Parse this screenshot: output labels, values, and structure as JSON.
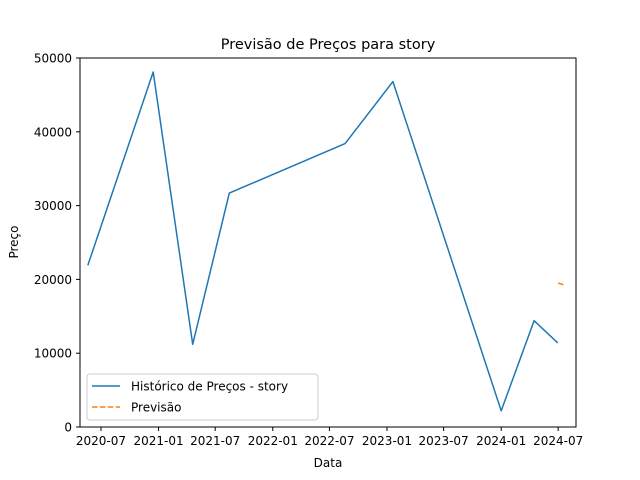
{
  "chart_data": {
    "type": "line",
    "title": "Previsão de Preços para story",
    "xlabel": "Data",
    "ylabel": "Preço",
    "x_ticks": [
      "2020-07",
      "2021-01",
      "2021-07",
      "2022-01",
      "2022-07",
      "2023-01",
      "2023-07",
      "2024-01",
      "2024-07"
    ],
    "y_ticks": [
      "0",
      "10000",
      "20000",
      "30000",
      "40000",
      "50000"
    ],
    "ylim": [
      0,
      50000
    ],
    "xlim": [
      "2020-04-25",
      "2024-08-27"
    ],
    "grid": false,
    "legend_position": "lower-left",
    "series": [
      {
        "name": "Histórico de Preços - story",
        "color": "#1f77b4",
        "style": "solid",
        "points": [
          {
            "x": "2020-05-20",
            "y": 21900
          },
          {
            "x": "2020-12-15",
            "y": 48100
          },
          {
            "x": "2021-04-20",
            "y": 11200
          },
          {
            "x": "2021-08-15",
            "y": 31700
          },
          {
            "x": "2022-08-20",
            "y": 38400
          },
          {
            "x": "2023-01-20",
            "y": 46800
          },
          {
            "x": "2024-01-01",
            "y": 2200
          },
          {
            "x": "2024-04-15",
            "y": 14400
          },
          {
            "x": "2024-06-30",
            "y": 11400
          }
        ]
      },
      {
        "name": "Previsão",
        "color": "#ff7f0e",
        "style": "dashed",
        "points": [
          {
            "x": "2024-07-01",
            "y": 19500
          },
          {
            "x": "2024-07-25",
            "y": 19200
          }
        ]
      }
    ]
  }
}
